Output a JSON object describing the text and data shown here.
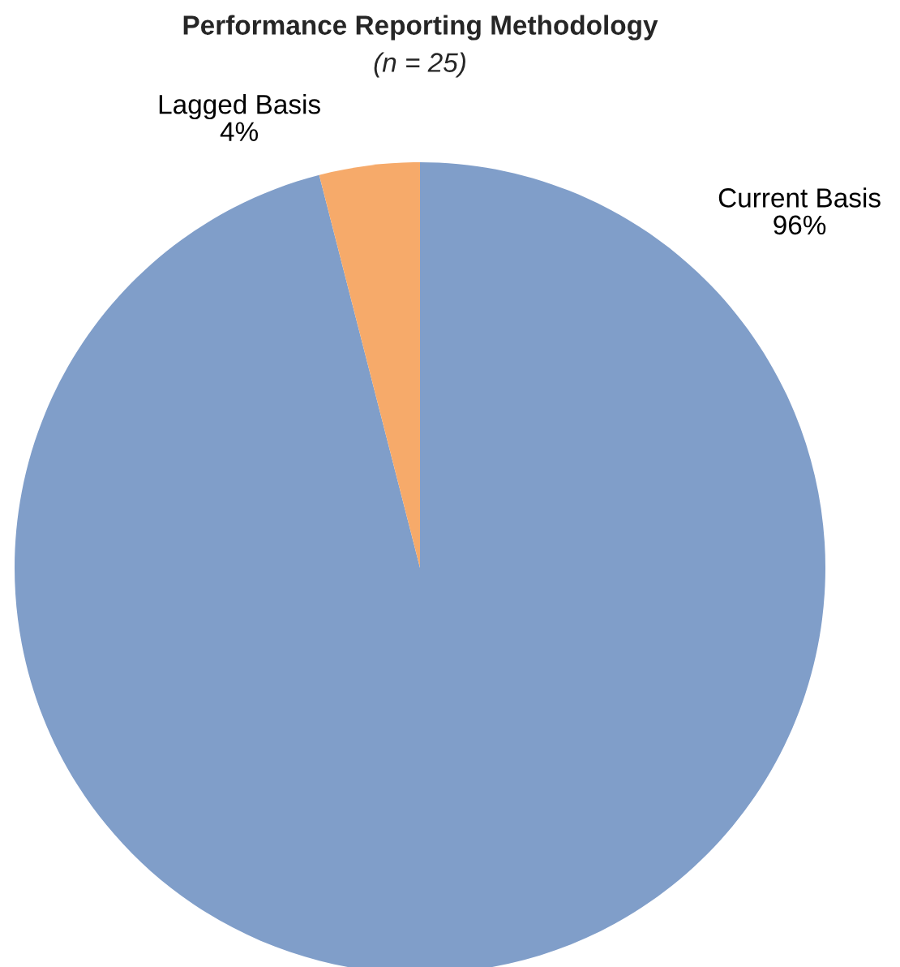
{
  "chart_data": {
    "type": "pie",
    "title": "Performance Reporting Methodology",
    "subtitle": "(n = 25)",
    "categories": [
      "Current Basis",
      "Lagged Basis"
    ],
    "values": [
      96,
      4
    ],
    "colors": [
      "#809ec9",
      "#f6aa6a"
    ],
    "value_labels": [
      "96%",
      "4%"
    ]
  }
}
